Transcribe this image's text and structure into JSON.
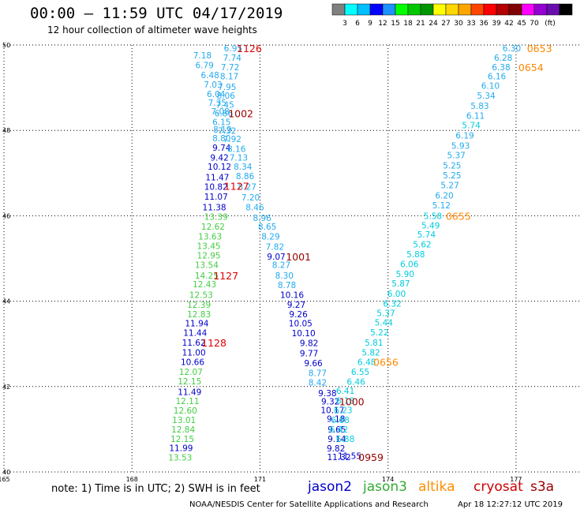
{
  "header": {
    "title": "00:00 – 11:59 UTC 04/17/2019",
    "subtitle": "12 hour collection of altimeter wave heights"
  },
  "colorbar": {
    "colors": [
      "#808080",
      "#00ffff",
      "#00bfff",
      "#0000ff",
      "#1e90ff",
      "#00ff00",
      "#00c800",
      "#009600",
      "#ffff00",
      "#ffd700",
      "#ffa500",
      "#ff4500",
      "#ff0000",
      "#b40000",
      "#800000",
      "#ff00ff",
      "#9400d3",
      "#6a0dad",
      "#000000"
    ],
    "labels": [
      "3",
      "6",
      "9",
      "12",
      "15",
      "18",
      "21",
      "24",
      "27",
      "30",
      "33",
      "36",
      "39",
      "42",
      "45",
      "70",
      "(ft)"
    ]
  },
  "footer": {
    "note": "note:  1) Time is in UTC;  2) SWH is in feet",
    "sat_jason2": "jason2",
    "sat_jason3": "jason3",
    "sat_altika": "altika",
    "sat_cryosat": "cryosat",
    "sat_s3a": "s3a",
    "credit": "NOAA/NESDIS Center for Satellite Applications and Research",
    "timestamp": "Apr 18 12:27:12 UTC 2019",
    "sat_colors": {
      "jason2": "#0000cc",
      "jason3": "#33aa33",
      "altika": "#ff8c00",
      "cryosat": "#cc0000",
      "s3a": "#990000"
    }
  },
  "chart_data": {
    "type": "scatter",
    "xlim": [
      165,
      178.5
    ],
    "ylim": [
      40,
      50
    ],
    "x_ticks": [
      {
        "label": "165",
        "value": 165
      },
      {
        "label": "168",
        "value": 168
      },
      {
        "label": "171",
        "value": 171
      },
      {
        "label": "174",
        "value": 174
      },
      {
        "label": "177",
        "value": 177
      }
    ],
    "y_ticks": [
      {
        "label": "40",
        "value": 40
      },
      {
        "label": "42",
        "value": 42
      },
      {
        "label": "44",
        "value": 44
      },
      {
        "label": "46",
        "value": 46
      },
      {
        "label": "48",
        "value": 48
      },
      {
        "label": "50",
        "value": 50
      }
    ],
    "grid": true,
    "colors": {
      "cyan": "#22aaee",
      "cyan2": "#00ccdd",
      "blue": "#0000cc",
      "green": "#44cc44",
      "red": "#dd0000",
      "darkred": "#990000",
      "orange": "#ff8800"
    },
    "points": [
      {
        "lon": 170.37,
        "lat": 49.93,
        "v": "6.95",
        "c": "cyan"
      },
      {
        "lon": 169.65,
        "lat": 49.76,
        "v": "7.18",
        "c": "cyan"
      },
      {
        "lon": 170.35,
        "lat": 49.7,
        "v": "7.74",
        "c": "cyan"
      },
      {
        "lon": 169.7,
        "lat": 49.53,
        "v": "6.79",
        "c": "cyan"
      },
      {
        "lon": 170.3,
        "lat": 49.48,
        "v": "7.72",
        "c": "cyan"
      },
      {
        "lon": 169.83,
        "lat": 49.3,
        "v": "6.48",
        "c": "cyan"
      },
      {
        "lon": 170.28,
        "lat": 49.27,
        "v": "8.17",
        "c": "cyan"
      },
      {
        "lon": 169.9,
        "lat": 49.08,
        "v": "7.03",
        "c": "cyan"
      },
      {
        "lon": 170.23,
        "lat": 49.02,
        "v": "7.95",
        "c": "cyan"
      },
      {
        "lon": 169.97,
        "lat": 48.85,
        "v": "6.04",
        "c": "cyan"
      },
      {
        "lon": 170.2,
        "lat": 48.82,
        "v": "8.06",
        "c": "cyan"
      },
      {
        "lon": 170.0,
        "lat": 48.65,
        "v": "7.35",
        "c": "cyan"
      },
      {
        "lon": 170.18,
        "lat": 48.6,
        "v": "7.45",
        "c": "cyan"
      },
      {
        "lon": 170.07,
        "lat": 48.45,
        "v": "7.08",
        "c": "cyan"
      },
      {
        "lon": 170.15,
        "lat": 48.4,
        "v": "6.86",
        "c": "cyan"
      },
      {
        "lon": 170.1,
        "lat": 48.2,
        "v": "6.15",
        "c": "cyan"
      },
      {
        "lon": 170.12,
        "lat": 48.02,
        "v": "8.19",
        "c": "cyan"
      },
      {
        "lon": 170.23,
        "lat": 47.99,
        "v": "7.32",
        "c": "cyan"
      },
      {
        "lon": 170.1,
        "lat": 47.82,
        "v": "8.80",
        "c": "cyan"
      },
      {
        "lon": 170.35,
        "lat": 47.8,
        "v": "7.92",
        "c": "cyan"
      },
      {
        "lon": 170.1,
        "lat": 47.6,
        "v": "9.74",
        "c": "blue"
      },
      {
        "lon": 170.45,
        "lat": 47.57,
        "v": "8.16",
        "c": "cyan"
      },
      {
        "lon": 170.05,
        "lat": 47.37,
        "v": "9.42",
        "c": "blue"
      },
      {
        "lon": 170.5,
        "lat": 47.37,
        "v": "7.13",
        "c": "cyan"
      },
      {
        "lon": 170.05,
        "lat": 47.15,
        "v": "10.12",
        "c": "blue"
      },
      {
        "lon": 170.6,
        "lat": 47.15,
        "v": "8.34",
        "c": "cyan"
      },
      {
        "lon": 170.0,
        "lat": 46.9,
        "v": "11.47",
        "c": "blue"
      },
      {
        "lon": 170.65,
        "lat": 46.93,
        "v": "8.86",
        "c": "cyan"
      },
      {
        "lon": 169.97,
        "lat": 46.68,
        "v": "10.82",
        "c": "blue"
      },
      {
        "lon": 170.7,
        "lat": 46.68,
        "v": "8.27",
        "c": "cyan"
      },
      {
        "lon": 169.97,
        "lat": 46.45,
        "v": "11.07",
        "c": "blue"
      },
      {
        "lon": 170.78,
        "lat": 46.43,
        "v": "7.20",
        "c": "cyan"
      },
      {
        "lon": 169.93,
        "lat": 46.2,
        "v": "11.38",
        "c": "blue"
      },
      {
        "lon": 170.88,
        "lat": 46.2,
        "v": "8.46",
        "c": "cyan"
      },
      {
        "lon": 169.97,
        "lat": 45.98,
        "v": "13.39",
        "c": "green"
      },
      {
        "lon": 171.05,
        "lat": 45.95,
        "v": "8.96",
        "c": "cyan"
      },
      {
        "lon": 169.9,
        "lat": 45.75,
        "v": "12.62",
        "c": "green"
      },
      {
        "lon": 171.17,
        "lat": 45.75,
        "v": "8.65",
        "c": "cyan"
      },
      {
        "lon": 169.83,
        "lat": 45.52,
        "v": "13.63",
        "c": "green"
      },
      {
        "lon": 171.25,
        "lat": 45.52,
        "v": "8.29",
        "c": "cyan"
      },
      {
        "lon": 169.8,
        "lat": 45.3,
        "v": "13.45",
        "c": "green"
      },
      {
        "lon": 171.35,
        "lat": 45.28,
        "v": "7.82",
        "c": "cyan"
      },
      {
        "lon": 169.8,
        "lat": 45.07,
        "v": "12.95",
        "c": "green"
      },
      {
        "lon": 171.38,
        "lat": 45.05,
        "v": "9.07",
        "c": "blue"
      },
      {
        "lon": 169.75,
        "lat": 44.85,
        "v": "13.54",
        "c": "green"
      },
      {
        "lon": 171.5,
        "lat": 44.85,
        "v": "8.27",
        "c": "cyan"
      },
      {
        "lon": 169.75,
        "lat": 44.6,
        "v": "14.25",
        "c": "green"
      },
      {
        "lon": 171.57,
        "lat": 44.6,
        "v": "8.30",
        "c": "cyan"
      },
      {
        "lon": 169.7,
        "lat": 44.4,
        "v": "12.43",
        "c": "green"
      },
      {
        "lon": 171.63,
        "lat": 44.38,
        "v": "8.78",
        "c": "cyan"
      },
      {
        "lon": 169.62,
        "lat": 44.15,
        "v": "12.53",
        "c": "green"
      },
      {
        "lon": 171.75,
        "lat": 44.15,
        "v": "10.16",
        "c": "blue"
      },
      {
        "lon": 169.57,
        "lat": 43.92,
        "v": "12.39",
        "c": "green"
      },
      {
        "lon": 171.85,
        "lat": 43.92,
        "v": "9.27",
        "c": "blue"
      },
      {
        "lon": 169.57,
        "lat": 43.7,
        "v": "12.83",
        "c": "green"
      },
      {
        "lon": 171.9,
        "lat": 43.7,
        "v": "9.26",
        "c": "blue"
      },
      {
        "lon": 169.52,
        "lat": 43.48,
        "v": "11.94",
        "c": "blue"
      },
      {
        "lon": 171.95,
        "lat": 43.48,
        "v": "10.05",
        "c": "blue"
      },
      {
        "lon": 169.48,
        "lat": 43.26,
        "v": "11.44",
        "c": "blue"
      },
      {
        "lon": 172.02,
        "lat": 43.25,
        "v": "10.10",
        "c": "blue"
      },
      {
        "lon": 169.45,
        "lat": 43.03,
        "v": "11.62",
        "c": "blue"
      },
      {
        "lon": 172.15,
        "lat": 43.02,
        "v": "9.82",
        "c": "blue"
      },
      {
        "lon": 169.45,
        "lat": 42.8,
        "v": "11.00",
        "c": "blue"
      },
      {
        "lon": 172.15,
        "lat": 42.78,
        "v": "9.77",
        "c": "blue"
      },
      {
        "lon": 169.42,
        "lat": 42.58,
        "v": "10.66",
        "c": "blue"
      },
      {
        "lon": 172.25,
        "lat": 42.55,
        "v": "9.66",
        "c": "blue"
      },
      {
        "lon": 169.38,
        "lat": 42.35,
        "v": "12.07",
        "c": "green"
      },
      {
        "lon": 172.35,
        "lat": 42.32,
        "v": "8.77",
        "c": "cyan"
      },
      {
        "lon": 169.35,
        "lat": 42.13,
        "v": "12.15",
        "c": "green"
      },
      {
        "lon": 172.35,
        "lat": 42.1,
        "v": "8.42",
        "c": "cyan"
      },
      {
        "lon": 169.35,
        "lat": 41.88,
        "v": "11.49",
        "c": "blue"
      },
      {
        "lon": 172.58,
        "lat": 41.85,
        "v": "9.38",
        "c": "blue"
      },
      {
        "lon": 169.3,
        "lat": 41.66,
        "v": "12.11",
        "c": "green"
      },
      {
        "lon": 172.65,
        "lat": 41.65,
        "v": "9.32",
        "c": "blue"
      },
      {
        "lon": 169.25,
        "lat": 41.44,
        "v": "12.60",
        "c": "green"
      },
      {
        "lon": 172.7,
        "lat": 41.45,
        "v": "10.17",
        "c": "blue"
      },
      {
        "lon": 169.22,
        "lat": 41.22,
        "v": "13.01",
        "c": "green"
      },
      {
        "lon": 172.78,
        "lat": 41.25,
        "v": "9.18",
        "c": "blue"
      },
      {
        "lon": 169.2,
        "lat": 41.0,
        "v": "12.84",
        "c": "green"
      },
      {
        "lon": 172.8,
        "lat": 41.0,
        "v": "9.65",
        "c": "blue"
      },
      {
        "lon": 169.18,
        "lat": 40.78,
        "v": "12.15",
        "c": "green"
      },
      {
        "lon": 172.8,
        "lat": 40.78,
        "v": "9.14",
        "c": "blue"
      },
      {
        "lon": 169.15,
        "lat": 40.56,
        "v": "11.99",
        "c": "blue"
      },
      {
        "lon": 172.78,
        "lat": 40.55,
        "v": "9.82",
        "c": "blue"
      },
      {
        "lon": 169.13,
        "lat": 40.34,
        "v": "13.53",
        "c": "green"
      },
      {
        "lon": 172.85,
        "lat": 40.35,
        "v": "11.32",
        "c": "blue"
      },
      {
        "lon": 173.1,
        "lat": 40.38,
        "v": "11.55",
        "c": "blue"
      },
      {
        "lon": 176.9,
        "lat": 49.93,
        "v": "6.30",
        "c": "cyan"
      },
      {
        "lon": 176.7,
        "lat": 49.7,
        "v": "6.28",
        "c": "cyan"
      },
      {
        "lon": 176.65,
        "lat": 49.48,
        "v": "6.38",
        "c": "cyan"
      },
      {
        "lon": 176.55,
        "lat": 49.27,
        "v": "6.16",
        "c": "cyan"
      },
      {
        "lon": 176.4,
        "lat": 49.05,
        "v": "6.10",
        "c": "cyan"
      },
      {
        "lon": 176.3,
        "lat": 48.82,
        "v": "5.34",
        "c": "cyan"
      },
      {
        "lon": 176.15,
        "lat": 48.58,
        "v": "5.83",
        "c": "cyan"
      },
      {
        "lon": 176.05,
        "lat": 48.35,
        "v": "6.11",
        "c": "cyan"
      },
      {
        "lon": 175.95,
        "lat": 48.12,
        "v": "5.74",
        "c": "cyan2"
      },
      {
        "lon": 175.8,
        "lat": 47.88,
        "v": "6.19",
        "c": "cyan"
      },
      {
        "lon": 175.7,
        "lat": 47.64,
        "v": "5.93",
        "c": "cyan"
      },
      {
        "lon": 175.6,
        "lat": 47.42,
        "v": "5.37",
        "c": "cyan"
      },
      {
        "lon": 175.5,
        "lat": 47.18,
        "v": "5.25",
        "c": "cyan"
      },
      {
        "lon": 175.5,
        "lat": 46.95,
        "v": "5.25",
        "c": "cyan"
      },
      {
        "lon": 175.45,
        "lat": 46.72,
        "v": "5.27",
        "c": "cyan"
      },
      {
        "lon": 175.32,
        "lat": 46.48,
        "v": "6.20",
        "c": "cyan"
      },
      {
        "lon": 175.25,
        "lat": 46.25,
        "v": "5.12",
        "c": "cyan"
      },
      {
        "lon": 175.05,
        "lat": 46.0,
        "v": "5.58",
        "c": "cyan2"
      },
      {
        "lon": 175.0,
        "lat": 45.78,
        "v": "5.49",
        "c": "cyan2"
      },
      {
        "lon": 174.9,
        "lat": 45.56,
        "v": "5.74",
        "c": "cyan2"
      },
      {
        "lon": 174.8,
        "lat": 45.33,
        "v": "5.62",
        "c": "cyan2"
      },
      {
        "lon": 174.65,
        "lat": 45.1,
        "v": "5.88",
        "c": "cyan2"
      },
      {
        "lon": 174.5,
        "lat": 44.87,
        "v": "6.06",
        "c": "cyan2"
      },
      {
        "lon": 174.4,
        "lat": 44.64,
        "v": "5.90",
        "c": "cyan2"
      },
      {
        "lon": 174.3,
        "lat": 44.42,
        "v": "5.87",
        "c": "cyan2"
      },
      {
        "lon": 174.2,
        "lat": 44.18,
        "v": "6.00",
        "c": "cyan2"
      },
      {
        "lon": 174.1,
        "lat": 43.95,
        "v": "6.32",
        "c": "cyan2"
      },
      {
        "lon": 173.95,
        "lat": 43.72,
        "v": "5.37",
        "c": "cyan2"
      },
      {
        "lon": 173.9,
        "lat": 43.5,
        "v": "5.44",
        "c": "cyan2"
      },
      {
        "lon": 173.8,
        "lat": 43.27,
        "v": "5.22",
        "c": "cyan2"
      },
      {
        "lon": 173.67,
        "lat": 43.03,
        "v": "5.81",
        "c": "cyan2"
      },
      {
        "lon": 173.6,
        "lat": 42.8,
        "v": "5.82",
        "c": "cyan2"
      },
      {
        "lon": 173.5,
        "lat": 42.58,
        "v": "6.48",
        "c": "cyan2"
      },
      {
        "lon": 173.35,
        "lat": 42.35,
        "v": "6.55",
        "c": "cyan2"
      },
      {
        "lon": 173.25,
        "lat": 42.12,
        "v": "6.46",
        "c": "cyan2"
      },
      {
        "lon": 173.0,
        "lat": 41.9,
        "v": "6.41",
        "c": "cyan2"
      },
      {
        "lon": 173.0,
        "lat": 41.67,
        "v": "6.18",
        "c": "cyan2"
      },
      {
        "lon": 172.95,
        "lat": 41.45,
        "v": "6.23",
        "c": "cyan2"
      },
      {
        "lon": 172.88,
        "lat": 41.22,
        "v": "6.68",
        "c": "cyan2"
      },
      {
        "lon": 172.85,
        "lat": 41.0,
        "v": "6.42",
        "c": "cyan2"
      },
      {
        "lon": 173.0,
        "lat": 40.78,
        "v": "6.88",
        "c": "cyan2"
      }
    ],
    "time_labels": [
      {
        "lon": 170.75,
        "lat": 49.93,
        "v": "1126",
        "c": "red"
      },
      {
        "lon": 170.55,
        "lat": 48.4,
        "v": "1002",
        "c": "darkred"
      },
      {
        "lon": 170.45,
        "lat": 46.7,
        "v": "1127",
        "c": "red"
      },
      {
        "lon": 171.9,
        "lat": 45.05,
        "v": "1001",
        "c": "darkred"
      },
      {
        "lon": 170.2,
        "lat": 44.6,
        "v": "1127",
        "c": "red"
      },
      {
        "lon": 169.92,
        "lat": 43.03,
        "v": "1128",
        "c": "red"
      },
      {
        "lon": 173.15,
        "lat": 41.65,
        "v": "1000",
        "c": "darkred"
      },
      {
        "lon": 173.6,
        "lat": 40.35,
        "v": "0959",
        "c": "darkred"
      },
      {
        "lon": 177.55,
        "lat": 49.93,
        "v": "0653",
        "c": "orange"
      },
      {
        "lon": 177.35,
        "lat": 49.48,
        "v": "0654",
        "c": "orange"
      },
      {
        "lon": 175.65,
        "lat": 46.0,
        "v": "0655",
        "c": "orange"
      },
      {
        "lon": 173.95,
        "lat": 42.58,
        "v": "0656",
        "c": "orange"
      }
    ]
  }
}
